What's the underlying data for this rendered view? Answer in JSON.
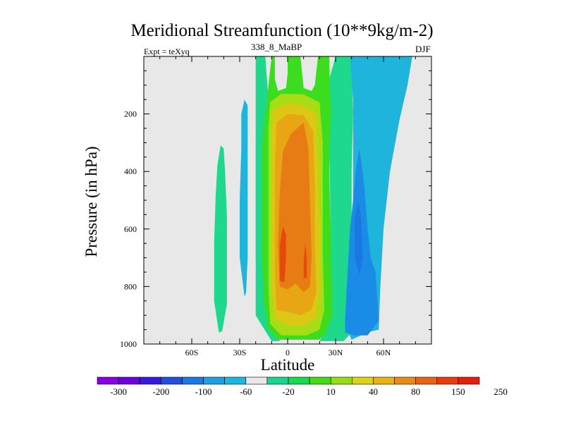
{
  "header": {
    "title": "Meridional Streamfunction (10**9kg/m-2)",
    "expt": "Expt = teXyq",
    "run": "338_8_MaBP",
    "season": "DJF"
  },
  "chart_data": {
    "type": "filled-contour",
    "title": "Meridional Streamfunction (10**9kg/m-2)",
    "xlabel": "Latitude",
    "ylabel": "Pressure (in hPa)",
    "xlim": [
      -90,
      90
    ],
    "ylim": [
      1000,
      0
    ],
    "y_reversed": true,
    "x_ticks": [
      {
        "value": -60,
        "label": "60S"
      },
      {
        "value": -30,
        "label": "30S"
      },
      {
        "value": 0,
        "label": "0"
      },
      {
        "value": 30,
        "label": "30N"
      },
      {
        "value": 60,
        "label": "60N"
      }
    ],
    "y_ticks": [
      200,
      400,
      600,
      800,
      1000
    ],
    "background_color": "#e8e8e8",
    "colorbar": {
      "levels": [
        "-300",
        "-200",
        "-100",
        "-60",
        "-20",
        "10",
        "40",
        "80",
        "150",
        "250"
      ],
      "colors": [
        "#8a00e6",
        "#6b00e0",
        "#3a18e0",
        "#1f4ee0",
        "#1a78e8",
        "#19a0e6",
        "#18b8e0",
        "#e8e8e8",
        "#18d68c",
        "#14dc50",
        "#46dc14",
        "#98dc14",
        "#dcd414",
        "#e8b414",
        "#e88c14",
        "#e86414",
        "#e83c0a",
        "#e61e0a"
      ]
    },
    "regions": [
      {
        "name": "streamfunction 10-40 (left cell)",
        "level_band": [
          10,
          40
        ],
        "color": "#1ed88e",
        "outline": [
          [
            -43,
            960
          ],
          [
            -46,
            850
          ],
          [
            -46,
            650
          ],
          [
            -45,
            480
          ],
          [
            -44,
            380
          ],
          [
            -42,
            310
          ],
          [
            -40,
            320
          ],
          [
            -39,
            420
          ],
          [
            -38,
            560
          ],
          [
            -38,
            700
          ],
          [
            -38,
            860
          ],
          [
            -41,
            955
          ]
        ]
      },
      {
        "name": "streamfunction -20 to 10 (left)",
        "level_band": [
          -20,
          10
        ],
        "color": "#1fb4dc",
        "outline": [
          [
            -27,
            835
          ],
          [
            -30,
            700
          ],
          [
            -30,
            500
          ],
          [
            -29,
            320
          ],
          [
            -29,
            200
          ],
          [
            -27,
            150
          ],
          [
            -25,
            170
          ],
          [
            -25,
            330
          ],
          [
            -25,
            520
          ],
          [
            -25,
            700
          ],
          [
            -26,
            820
          ]
        ]
      },
      {
        "name": "streamfunction 10-40 (narrow)",
        "level_band": [
          10,
          40
        ],
        "color": "#1ed88e",
        "outline": [
          [
            -18,
            830
          ],
          [
            -20,
            700
          ],
          [
            -20,
            500
          ],
          [
            -20,
            300
          ],
          [
            -19,
            120
          ],
          [
            -17,
            90
          ],
          [
            -15,
            110
          ],
          [
            -15,
            300
          ],
          [
            -15,
            500
          ],
          [
            -16,
            700
          ],
          [
            -17,
            820
          ]
        ]
      },
      {
        "name": "streamfunction 10-40 (core envelope)",
        "level_band": [
          10,
          40
        ],
        "color": "#1ed88e",
        "outline": [
          [
            -20,
            0
          ],
          [
            -14,
            0
          ],
          [
            -12,
            150
          ],
          [
            -11,
            330
          ],
          [
            -11,
            520
          ],
          [
            -9,
            700
          ],
          [
            -8,
            870
          ],
          [
            -5,
            990
          ],
          [
            20,
            990
          ],
          [
            26,
            930
          ],
          [
            27,
            600
          ],
          [
            26,
            300
          ],
          [
            26,
            80
          ],
          [
            30,
            0
          ],
          [
            40,
            0
          ],
          [
            41,
            200
          ],
          [
            40,
            400
          ],
          [
            40,
            600
          ],
          [
            38,
            900
          ],
          [
            40,
            960
          ],
          [
            35,
            990
          ],
          [
            20,
            990
          ],
          [
            -10,
            990
          ],
          [
            -20,
            900
          ],
          [
            -20,
            600
          ],
          [
            -20,
            300
          ]
        ]
      },
      {
        "name": "streamfunction 40-80",
        "level_band": [
          40,
          80
        ],
        "color": "#3cdc1e",
        "outline": [
          [
            -10,
            0
          ],
          [
            -8,
            0
          ],
          [
            -8,
            80
          ],
          [
            -6,
            120
          ],
          [
            -1,
            110
          ],
          [
            0,
            60
          ],
          [
            0,
            0
          ],
          [
            8,
            0
          ],
          [
            10,
            110
          ],
          [
            15,
            120
          ],
          [
            17,
            100
          ],
          [
            19,
            0
          ],
          [
            26,
            0
          ],
          [
            27,
            200
          ],
          [
            26,
            400
          ],
          [
            27,
            600
          ],
          [
            28,
            900
          ],
          [
            24,
            960
          ],
          [
            20,
            985
          ],
          [
            -6,
            985
          ],
          [
            -12,
            950
          ],
          [
            -15,
            850
          ],
          [
            -16,
            700
          ],
          [
            -16,
            500
          ],
          [
            -16,
            300
          ],
          [
            -14,
            200
          ],
          [
            -12,
            100
          ]
        ]
      },
      {
        "name": "streamfunction 80-150",
        "level_band": [
          80,
          150
        ],
        "color": "#a8dc14",
        "outline": [
          [
            -11,
            160
          ],
          [
            -4,
            130
          ],
          [
            10,
            132
          ],
          [
            20,
            160
          ],
          [
            22,
            300
          ],
          [
            22,
            500
          ],
          [
            22,
            700
          ],
          [
            23,
            880
          ],
          [
            20,
            950
          ],
          [
            12,
            970
          ],
          [
            -4,
            970
          ],
          [
            -11,
            930
          ],
          [
            -12,
            800
          ],
          [
            -12,
            600
          ],
          [
            -12,
            400
          ],
          [
            -12,
            250
          ]
        ]
      },
      {
        "name": "streamfunction 150-200",
        "level_band": [
          150,
          200
        ],
        "color": "#dcc814",
        "outline": [
          [
            -9,
            185
          ],
          [
            -1,
            165
          ],
          [
            10,
            170
          ],
          [
            18,
            200
          ],
          [
            19,
            400
          ],
          [
            20,
            600
          ],
          [
            20,
            820
          ],
          [
            18,
            910
          ],
          [
            10,
            935
          ],
          [
            0,
            935
          ],
          [
            -8,
            910
          ],
          [
            -10,
            800
          ],
          [
            -10,
            600
          ],
          [
            -10,
            400
          ],
          [
            -10,
            260
          ]
        ]
      },
      {
        "name": "streamfunction 200-250",
        "level_band": [
          200,
          250
        ],
        "color": "#e8a614",
        "outline": [
          [
            -7,
            230
          ],
          [
            0,
            200
          ],
          [
            10,
            205
          ],
          [
            16,
            260
          ],
          [
            17,
            450
          ],
          [
            17,
            650
          ],
          [
            18,
            820
          ],
          [
            15,
            880
          ],
          [
            8,
            900
          ],
          [
            1,
            890
          ],
          [
            -7,
            880
          ],
          [
            -8,
            750
          ],
          [
            -8,
            550
          ],
          [
            -8,
            380
          ]
        ]
      },
      {
        "name": "streamfunction 250-300",
        "level_band": [
          250,
          300
        ],
        "color": "#e87c14",
        "outline": [
          [
            -3,
            330
          ],
          [
            2,
            270
          ],
          [
            10,
            230
          ],
          [
            13,
            320
          ],
          [
            14,
            500
          ],
          [
            15,
            700
          ],
          [
            14,
            800
          ],
          [
            10,
            820
          ],
          [
            5,
            790
          ],
          [
            0,
            810
          ],
          [
            -5,
            800
          ],
          [
            -6,
            650
          ],
          [
            -5,
            480
          ]
        ]
      },
      {
        "name": "streamfunction max >300",
        "level_band": [
          300,
          350
        ],
        "color": "#e64a0a",
        "outline": [
          [
            -5,
            780
          ],
          [
            -5,
            660
          ],
          [
            -3,
            590
          ],
          [
            -1,
            620
          ],
          [
            -1,
            700
          ],
          [
            -2,
            785
          ]
        ]
      },
      {
        "name": "streamfunction max >300 (small)",
        "level_band": [
          300,
          350
        ],
        "color": "#e64a0a",
        "outline": [
          [
            10,
            770
          ],
          [
            10,
            720
          ],
          [
            11,
            650
          ],
          [
            12,
            700
          ],
          [
            12,
            770
          ]
        ]
      },
      {
        "name": "streamfunction -20 to 10 (right)",
        "level_band": [
          -20,
          10
        ],
        "color": "#1fb4dc",
        "outline": [
          [
            39,
            0
          ],
          [
            78,
            0
          ],
          [
            75,
            100
          ],
          [
            70,
            220
          ],
          [
            64,
            400
          ],
          [
            60,
            600
          ],
          [
            58,
            800
          ],
          [
            57,
            950
          ],
          [
            49,
            960
          ],
          [
            44,
            975
          ],
          [
            40,
            985
          ],
          [
            38,
            960
          ],
          [
            40,
            900
          ],
          [
            40,
            700
          ],
          [
            41,
            500
          ],
          [
            41,
            300
          ],
          [
            41,
            150
          ]
        ]
      },
      {
        "name": "streamfunction -60 to -20 (right)",
        "level_band": [
          -60,
          -20
        ],
        "color": "#1a8ce6",
        "outline": [
          [
            36,
            910
          ],
          [
            37,
            800
          ],
          [
            39,
            600
          ],
          [
            41,
            500
          ],
          [
            43,
            380
          ],
          [
            45,
            320
          ],
          [
            48,
            450
          ],
          [
            50,
            600
          ],
          [
            52,
            700
          ],
          [
            55,
            750
          ],
          [
            57,
            920
          ],
          [
            50,
            970
          ],
          [
            42,
            970
          ],
          [
            36,
            960
          ]
        ]
      },
      {
        "name": "streamfunction -100 to -60 (right core)",
        "level_band": [
          -100,
          -60
        ],
        "color": "#1a78e0",
        "outline": [
          [
            42,
            700
          ],
          [
            42,
            560
          ],
          [
            44,
            500
          ],
          [
            46,
            560
          ],
          [
            47,
            700
          ],
          [
            45,
            760
          ]
        ]
      }
    ]
  }
}
